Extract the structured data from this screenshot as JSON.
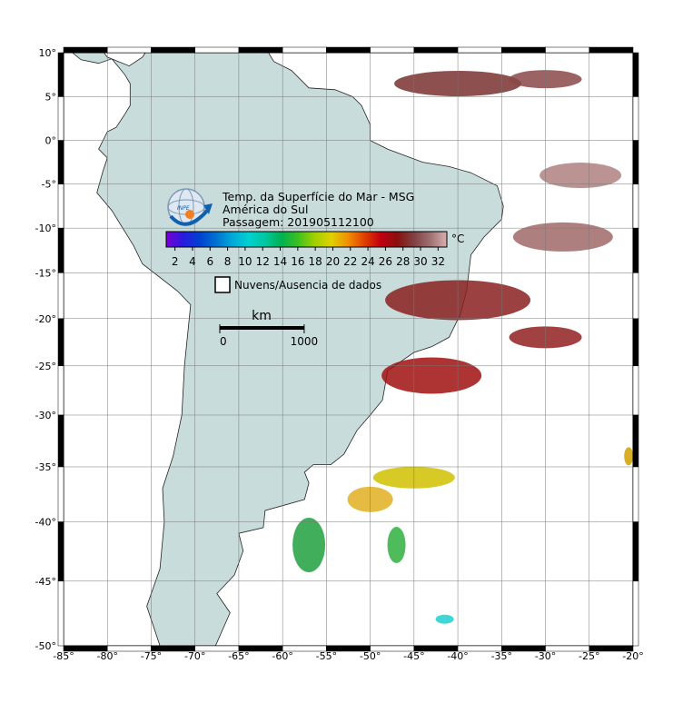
{
  "header": {
    "title": "Temp. da Superfície do Mar - MSG",
    "region": "América do Sul",
    "pass": "Passagem: 201905112100"
  },
  "colorbar": {
    "unit": "°C",
    "range": [
      1,
      33
    ],
    "ticks": [
      2,
      4,
      6,
      8,
      10,
      12,
      14,
      16,
      18,
      20,
      22,
      24,
      26,
      28,
      30,
      32
    ],
    "colors": [
      "#7a00d0",
      "#2a1ae0",
      "#0040d0",
      "#0070d0",
      "#00a8d8",
      "#00d0d0",
      "#00c8a0",
      "#00b050",
      "#40c020",
      "#a0d000",
      "#e0d000",
      "#f09000",
      "#e04000",
      "#c00010",
      "#8a1010",
      "#804040",
      "#a07070",
      "#d8b0b0"
    ]
  },
  "legend": {
    "label": "Nuvens/Ausencia de dados"
  },
  "scale": {
    "unit": "km",
    "ticks": [
      0,
      1000
    ]
  },
  "map": {
    "lonlim": [
      -85,
      -20
    ],
    "latlim": [
      -50,
      10
    ],
    "grid": true,
    "lonticks": [
      {
        "value": -85,
        "label": "-85°"
      },
      {
        "value": -80,
        "label": "-80°"
      },
      {
        "value": -75,
        "label": "-75°"
      },
      {
        "value": -70,
        "label": "-70°"
      },
      {
        "value": -65,
        "label": "-65°"
      },
      {
        "value": -60,
        "label": "-60°"
      },
      {
        "value": -55,
        "label": "-55°"
      },
      {
        "value": -50,
        "label": "-50°"
      },
      {
        "value": -45,
        "label": "-45°"
      },
      {
        "value": -40,
        "label": "-40°"
      },
      {
        "value": -35,
        "label": "-35°"
      },
      {
        "value": -30,
        "label": "-30°"
      },
      {
        "value": -25,
        "label": "-25°"
      },
      {
        "value": -20,
        "label": "-20°"
      }
    ],
    "latticks": [
      {
        "value": 10,
        "label": "10°"
      },
      {
        "value": 5,
        "label": "5°"
      },
      {
        "value": 0,
        "label": "0°"
      },
      {
        "value": -5,
        "label": "-5°"
      },
      {
        "value": -10,
        "label": "-10°"
      },
      {
        "value": -15,
        "label": "-15°"
      },
      {
        "value": -20,
        "label": "-20°"
      },
      {
        "value": -25,
        "label": "-25°"
      },
      {
        "value": -30,
        "label": "-30°"
      },
      {
        "value": -35,
        "label": "-35°"
      },
      {
        "value": -40,
        "label": "-40°"
      },
      {
        "value": -45,
        "label": "-45°"
      },
      {
        "value": -50,
        "label": "-50°"
      }
    ]
  }
}
